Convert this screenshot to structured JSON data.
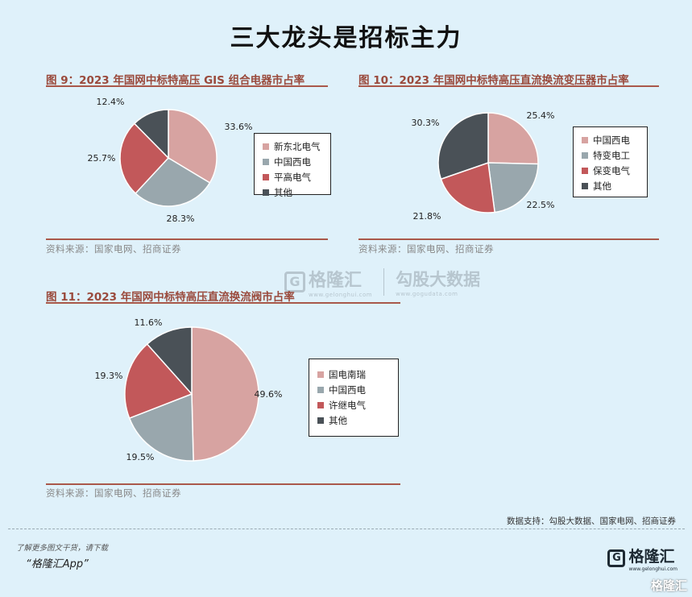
{
  "page_title": "三大龙头是招标主力",
  "chart_data": [
    {
      "type": "pie",
      "title": "图 9：2023 年国网中标特高压 GIS 组合电器市占率",
      "source": "资料来源：国家电网、招商证券",
      "slices": [
        {
          "name": "新东北电气",
          "value": 33.6,
          "label": "33.6%",
          "color": "#d7a3a1"
        },
        {
          "name": "中国西电",
          "value": 28.3,
          "label": "28.3%",
          "color": "#99a7ad"
        },
        {
          "name": "平高电气",
          "value": 25.7,
          "label": "25.7%",
          "color": "#c2585a"
        },
        {
          "name": "其他",
          "value": 12.4,
          "label": "12.4%",
          "color": "#4a5157"
        }
      ]
    },
    {
      "type": "pie",
      "title": "图 10：2023 年国网中标特高压直流换流变压器市占率",
      "source": "资料来源：国家电网、招商证券",
      "slices": [
        {
          "name": "中国西电",
          "value": 25.4,
          "label": "25.4%",
          "color": "#d7a3a1"
        },
        {
          "name": "特变电工",
          "value": 22.5,
          "label": "22.5%",
          "color": "#99a7ad"
        },
        {
          "name": "保变电气",
          "value": 21.8,
          "label": "21.8%",
          "color": "#c2585a"
        },
        {
          "name": "其他",
          "value": 30.3,
          "label": "30.3%",
          "color": "#4a5157"
        }
      ]
    },
    {
      "type": "pie",
      "title": "图 11：2023 年国网中标特高压直流换流阀市占率",
      "source": "资料来源：国家电网、招商证券",
      "slices": [
        {
          "name": "国电南瑞",
          "value": 49.6,
          "label": "49.6%",
          "color": "#d7a3a1"
        },
        {
          "name": "中国西电",
          "value": 19.5,
          "label": "19.5%",
          "color": "#99a7ad"
        },
        {
          "name": "许继电气",
          "value": 19.3,
          "label": "19.3%",
          "color": "#c2585a"
        },
        {
          "name": "其他",
          "value": 11.6,
          "label": "11.6%",
          "color": "#4a5157"
        }
      ]
    }
  ],
  "watermark": {
    "logo_letter": "G",
    "name": "格隆汇",
    "sub": "www.gelonghui.com",
    "name2": "勾股大数据",
    "sub2": "www.gogudata.com"
  },
  "credit": "数据支持：勾股大数据、国家电网、招商证券",
  "footer": {
    "download_text": "了解更多图文干货，请下载",
    "app_text": "“格隆汇App”",
    "brand_letter": "G",
    "brand_name": "格隆汇",
    "brand_sub": "www.gelonghui.com",
    "corner_text": "格隆汇"
  }
}
